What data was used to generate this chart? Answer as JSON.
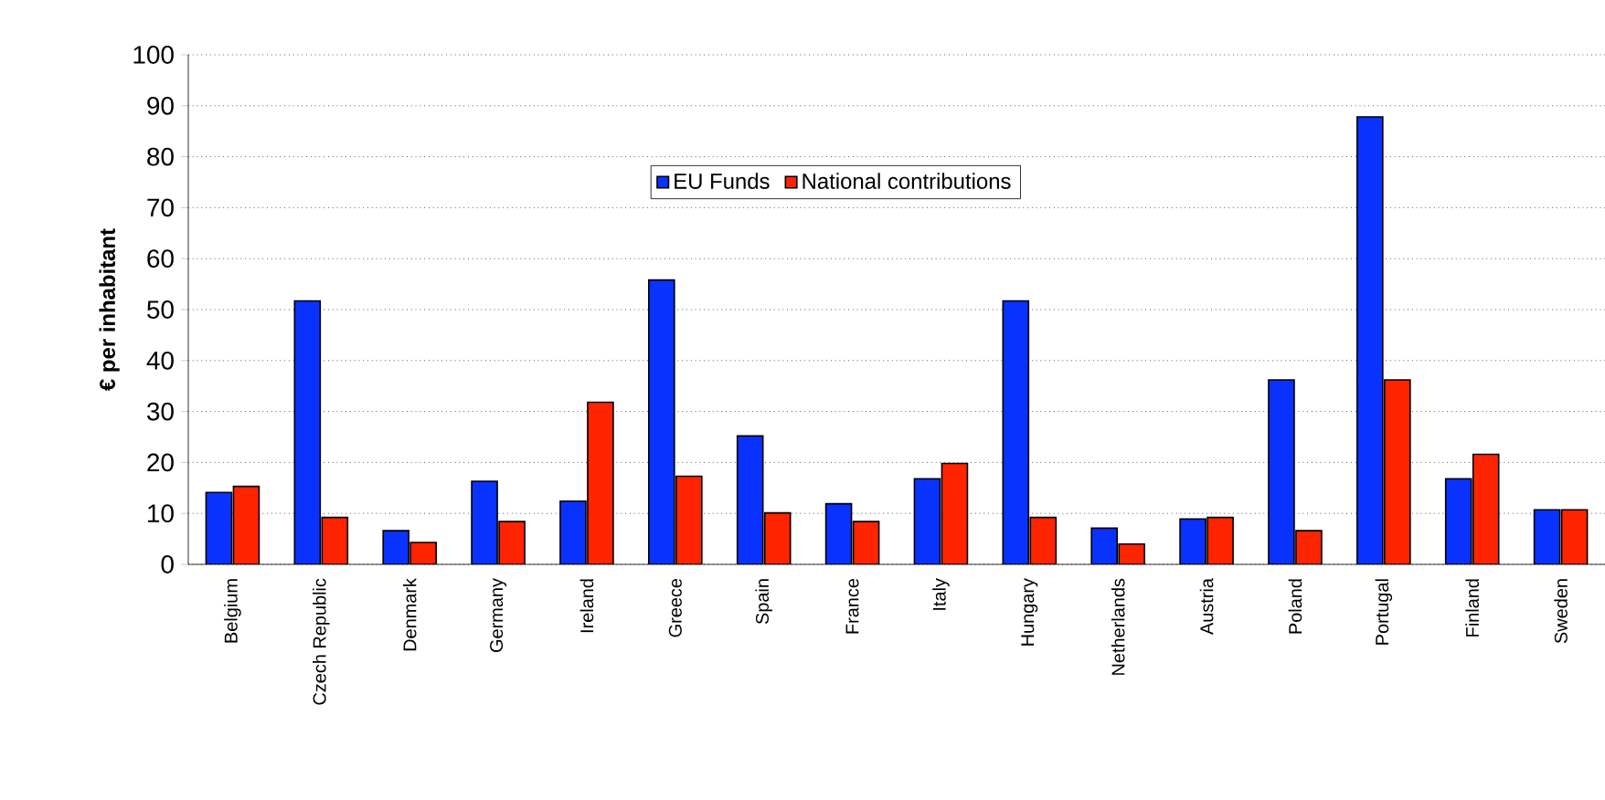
{
  "chart_data": {
    "type": "bar",
    "ylabel": "€ per inhabitant",
    "categories": [
      "Belgium",
      "Czech Republic",
      "Denmark",
      "Germany",
      "Ireland",
      "Greece",
      "Spain",
      "France",
      "Italy",
      "Hungary",
      "Netherlands",
      "Austria",
      "Poland",
      "Portugal",
      "Finland",
      "Sweden"
    ],
    "series": [
      {
        "name": "EU Funds",
        "color": "#0a32ff",
        "values": [
          14.1,
          51.7,
          6.6,
          16.3,
          12.4,
          55.8,
          25.2,
          11.9,
          16.8,
          51.7,
          7.1,
          8.9,
          36.2,
          87.8,
          16.8,
          10.7
        ]
      },
      {
        "name": "National contributions",
        "color": "#ff2400",
        "values": [
          15.3,
          9.2,
          4.3,
          8.4,
          31.8,
          17.3,
          10.1,
          8.4,
          19.8,
          9.2,
          4.0,
          9.2,
          6.6,
          36.2,
          21.6,
          10.7
        ]
      }
    ],
    "ylim": [
      0,
      100
    ],
    "yticks": [
      0,
      10,
      20,
      30,
      40,
      50,
      60,
      70,
      80,
      90,
      100
    ],
    "grid": "y",
    "legend": "top"
  }
}
